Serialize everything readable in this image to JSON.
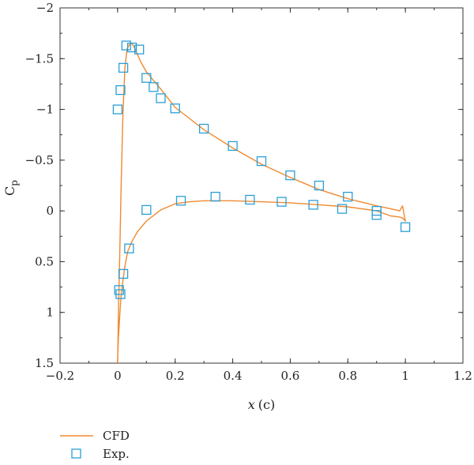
{
  "chart_data": {
    "type": "scatter",
    "xlabel_var": "x",
    "xlabel_unit": "(c)",
    "ylabel": "Cp",
    "ylabel_main": "C",
    "ylabel_sub": "p",
    "xlim": [
      -0.2,
      1.2
    ],
    "ylim": [
      1.5,
      -2
    ],
    "y_inverted": true,
    "x_ticks": [
      -0.2,
      0,
      0.2,
      0.4,
      0.6,
      0.8,
      1,
      1.2
    ],
    "x_tick_labels": [
      "−0.2",
      "0",
      "0.2",
      "0.4",
      "0.6",
      "0.8",
      "1",
      "1.2"
    ],
    "y_ticks": [
      -2,
      -1.5,
      -1,
      -0.5,
      0,
      0.5,
      1,
      1.5
    ],
    "y_tick_labels": [
      "−2",
      "−1.5",
      "−1",
      "−0.5",
      "0",
      "0.5",
      "1",
      "1.5"
    ],
    "grid": false,
    "legend_position": "bottom-left, below plot",
    "series": [
      {
        "name": "CFD",
        "kind": "line",
        "color": "#f08a30",
        "x": [
          0.0,
          0.003,
          0.007,
          0.012,
          0.018,
          0.025,
          0.033,
          0.042,
          0.05,
          0.06,
          0.08,
          0.1,
          0.15,
          0.2,
          0.3,
          0.4,
          0.5,
          0.6,
          0.7,
          0.8,
          0.9,
          0.95,
          0.98,
          0.99,
          1.0,
          0.99,
          0.98,
          0.95,
          0.9,
          0.8,
          0.7,
          0.6,
          0.5,
          0.4,
          0.35,
          0.3,
          0.25,
          0.2,
          0.15,
          0.1,
          0.07,
          0.05,
          0.035,
          0.025,
          0.018,
          0.012,
          0.008,
          0.005,
          0.003,
          0.001,
          0.0
        ],
        "y": [
          1.5,
          1.0,
          0.5,
          -0.2,
          -0.9,
          -1.4,
          -1.6,
          -1.64,
          -1.65,
          -1.6,
          -1.47,
          -1.37,
          -1.2,
          -1.02,
          -0.8,
          -0.62,
          -0.46,
          -0.33,
          -0.21,
          -0.12,
          -0.05,
          -0.02,
          0.0,
          -0.05,
          0.1,
          0.07,
          0.06,
          0.05,
          0.0,
          -0.04,
          -0.06,
          -0.08,
          -0.09,
          -0.1,
          -0.1,
          -0.1,
          -0.09,
          -0.07,
          -0.01,
          0.1,
          0.2,
          0.3,
          0.4,
          0.55,
          0.7,
          0.85,
          1.0,
          1.15,
          1.25,
          1.4,
          1.5
        ]
      },
      {
        "name": "Exp.",
        "kind": "scatter",
        "marker": "square",
        "color": "#2a9fd6",
        "x": [
          0.0,
          0.01,
          0.02,
          0.03,
          0.05,
          0.075,
          0.1,
          0.125,
          0.15,
          0.2,
          0.3,
          0.4,
          0.5,
          0.6,
          0.7,
          0.8,
          0.9,
          1.0,
          0.9,
          0.78,
          0.68,
          0.57,
          0.46,
          0.34,
          0.22,
          0.1,
          0.04,
          0.02,
          0.01,
          0.005
        ],
        "y": [
          -1.0,
          -1.19,
          -1.41,
          -1.63,
          -1.61,
          -1.59,
          -1.31,
          -1.22,
          -1.11,
          -1.01,
          -0.81,
          -0.64,
          -0.49,
          -0.35,
          -0.25,
          -0.14,
          0.0,
          0.16,
          0.04,
          -0.02,
          -0.06,
          -0.09,
          -0.11,
          -0.14,
          -0.1,
          -0.01,
          0.37,
          0.62,
          0.82,
          0.78
        ]
      }
    ]
  }
}
